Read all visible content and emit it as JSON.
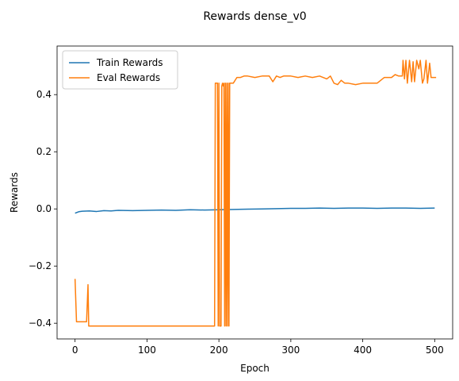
{
  "chart_data": {
    "type": "line",
    "title": "Rewards dense_v0",
    "xlabel": "Epoch",
    "ylabel": "Rewards",
    "xlim": [
      -25,
      525
    ],
    "ylim": [
      -0.455,
      0.57
    ],
    "xticks": [
      0,
      100,
      200,
      300,
      400,
      500
    ],
    "yticks": [
      -0.4,
      -0.2,
      0.0,
      0.2,
      0.4
    ],
    "ytick_labels": [
      "−0.4",
      "−0.2",
      "0.0",
      "0.2",
      "0.4"
    ],
    "grid": false,
    "legend": "top-left",
    "series": [
      {
        "name": "Train Rewards",
        "color": "#1f77b4",
        "x": [
          0,
          5,
          10,
          20,
          30,
          40,
          50,
          60,
          80,
          100,
          120,
          140,
          160,
          180,
          200,
          220,
          240,
          260,
          280,
          300,
          320,
          340,
          360,
          380,
          400,
          420,
          440,
          460,
          480,
          500
        ],
        "y": [
          -0.015,
          -0.01,
          -0.008,
          -0.007,
          -0.009,
          -0.006,
          -0.007,
          -0.005,
          -0.006,
          -0.005,
          -0.004,
          -0.005,
          -0.003,
          -0.004,
          -0.003,
          -0.002,
          -0.001,
          0.0,
          0.001,
          0.002,
          0.002,
          0.003,
          0.002,
          0.003,
          0.003,
          0.002,
          0.003,
          0.003,
          0.002,
          0.003
        ]
      },
      {
        "name": "Eval Rewards",
        "color": "#ff7f0e",
        "x": [
          0,
          2,
          4,
          16,
          18,
          19,
          20,
          22,
          100,
          180,
          194,
          195,
          196,
          198,
          199,
          200,
          201,
          202,
          203,
          204,
          205,
          206,
          207,
          208,
          209,
          210,
          211,
          212,
          213,
          214,
          215,
          216,
          217,
          218,
          220,
          225,
          230,
          235,
          240,
          250,
          260,
          270,
          275,
          280,
          285,
          290,
          300,
          310,
          320,
          330,
          340,
          350,
          355,
          360,
          365,
          370,
          375,
          380,
          390,
          400,
          410,
          420,
          430,
          440,
          445,
          450,
          455,
          456,
          458,
          460,
          462,
          465,
          468,
          470,
          472,
          475,
          478,
          480,
          483,
          485,
          488,
          490,
          493,
          495,
          500,
          502
        ],
        "y": [
          -0.245,
          -0.395,
          -0.395,
          -0.395,
          -0.265,
          -0.41,
          -0.41,
          -0.41,
          -0.41,
          -0.41,
          -0.41,
          0.44,
          0.44,
          0.44,
          -0.41,
          0.44,
          -0.41,
          -0.41,
          -0.41,
          0.43,
          0.44,
          0.43,
          0.44,
          -0.41,
          0.44,
          -0.41,
          0.44,
          -0.41,
          0.44,
          -0.41,
          0.44,
          0.44,
          0.44,
          0.44,
          0.44,
          0.46,
          0.46,
          0.465,
          0.465,
          0.46,
          0.465,
          0.465,
          0.445,
          0.465,
          0.46,
          0.465,
          0.465,
          0.46,
          0.465,
          0.46,
          0.465,
          0.455,
          0.465,
          0.44,
          0.435,
          0.45,
          0.44,
          0.44,
          0.435,
          0.44,
          0.44,
          0.44,
          0.46,
          0.46,
          0.47,
          0.465,
          0.465,
          0.52,
          0.455,
          0.52,
          0.44,
          0.52,
          0.445,
          0.515,
          0.445,
          0.52,
          0.49,
          0.52,
          0.44,
          0.455,
          0.52,
          0.44,
          0.51,
          0.46,
          0.46,
          0.46
        ]
      }
    ]
  }
}
